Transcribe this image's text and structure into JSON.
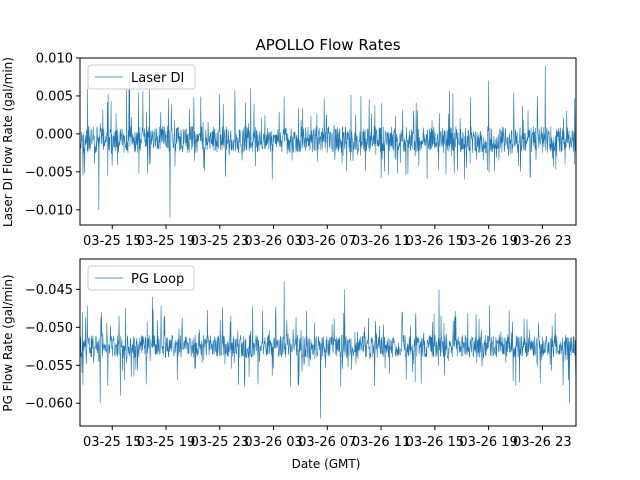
{
  "chart_data": [
    {
      "type": "line",
      "title": "APOLLO Flow Rates",
      "xlabel": "",
      "ylabel": "Laser DI Flow Rate (gal/min)",
      "ylim": [
        -0.012,
        0.01
      ],
      "yticks": [
        0.01,
        0.005,
        0.0,
        -0.005,
        -0.01
      ],
      "ytick_labels": [
        "0.010",
        "0.005",
        "0.000",
        "−0.005",
        "−0.010"
      ],
      "xlim_hours": [
        -0.4,
        36.5
      ],
      "xticks_hours": [
        2,
        6,
        10,
        14,
        18,
        22,
        26,
        30,
        34
      ],
      "xtick_labels": [
        "03-25 15",
        "03-25 19",
        "03-25 23",
        "03-26 03",
        "03-26 07",
        "03-26 11",
        "03-26 15",
        "03-26 19",
        "03-26 23"
      ],
      "legend": "top-left",
      "series": [
        {
          "name": "Laser DI",
          "color": "#1f77b4",
          "baseline": -0.001,
          "band": [
            -0.0025,
            0.001
          ],
          "noise_range": [
            -0.006,
            0.006
          ],
          "spikes_hours": [
            1.0,
            3.3,
            6.3,
            12.3,
            13.9,
            20.5,
            28.2,
            30.0,
            34.2
          ],
          "spikes_values": [
            -0.01,
            0.008,
            -0.011,
            0.006,
            -0.006,
            0.005,
            -0.006,
            0.007,
            0.009
          ]
        }
      ]
    },
    {
      "type": "line",
      "title": "",
      "xlabel": "Date (GMT)",
      "ylabel": "PG Flow Rate (gal/min)",
      "ylim": [
        -0.063,
        -0.041
      ],
      "yticks": [
        -0.045,
        -0.05,
        -0.055,
        -0.06
      ],
      "ytick_labels": [
        "−0.045",
        "−0.050",
        "−0.055",
        "−0.060"
      ],
      "xlim_hours": [
        -0.4,
        36.5
      ],
      "xticks_hours": [
        2,
        6,
        10,
        14,
        18,
        22,
        26,
        30,
        34
      ],
      "xtick_labels": [
        "03-25 15",
        "03-25 19",
        "03-25 23",
        "03-26 03",
        "03-26 07",
        "03-26 11",
        "03-26 15",
        "03-26 19",
        "03-26 23"
      ],
      "legend": "top-left",
      "series": [
        {
          "name": "PG Loop",
          "color": "#1f77b4",
          "baseline": -0.0525,
          "band": [
            -0.054,
            -0.051
          ],
          "noise_range": [
            -0.058,
            -0.047
          ],
          "spikes_hours": [
            1.1,
            2.6,
            5.0,
            14.8,
            17.5,
            19.3,
            26.3,
            36.0
          ],
          "spikes_values": [
            -0.06,
            -0.059,
            -0.046,
            -0.044,
            -0.062,
            -0.045,
            -0.045,
            -0.06
          ]
        }
      ]
    }
  ]
}
